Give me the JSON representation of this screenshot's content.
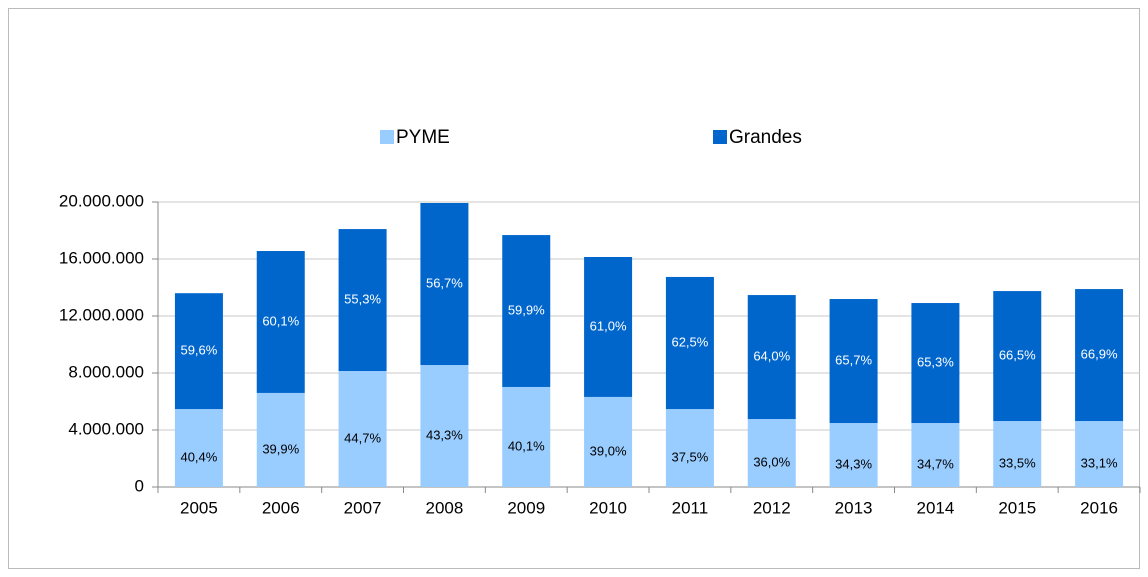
{
  "chart_data": {
    "type": "stacked_bar",
    "categories": [
      "2005",
      "2006",
      "2007",
      "2008",
      "2009",
      "2010",
      "2011",
      "2012",
      "2013",
      "2014",
      "2015",
      "2016"
    ],
    "series": [
      {
        "name": "PYME",
        "color": "#99ccff",
        "values": [
          5470000,
          6600000,
          8140000,
          8560000,
          7020000,
          6320000,
          5470000,
          4770000,
          4490000,
          4490000,
          4630000,
          4630000
        ],
        "share_labels": [
          "40,4%",
          "39,9%",
          "44,7%",
          "43,3%",
          "40,1%",
          "39,0%",
          "37,5%",
          "36,0%",
          "34,3%",
          "34,7%",
          "33,5%",
          "33,1%"
        ]
      },
      {
        "name": "Grandes",
        "color": "#0066cc",
        "values": [
          8130000,
          9960000,
          9960000,
          11370000,
          10660000,
          9820000,
          9270000,
          8700000,
          8700000,
          8420000,
          9120000,
          9260000
        ],
        "share_labels": [
          "59,6%",
          "60,1%",
          "55,3%",
          "56,7%",
          "59,9%",
          "61,0%",
          "62,5%",
          "64,0%",
          "65,7%",
          "65,3%",
          "66,5%",
          "66,9%"
        ]
      }
    ],
    "ylim": [
      0,
      20000000
    ],
    "yticks": [
      0,
      {
        "value": 4000000,
        "label": "4.000.000"
      },
      {
        "value": 8000000,
        "label": "8.000.000"
      },
      {
        "value": 12000000,
        "label": "12.000.000"
      },
      {
        "value": 16000000,
        "label": "16.000.000"
      },
      {
        "value": 20000000,
        "label": "20.000.000"
      }
    ],
    "grid": true,
    "legend": "top"
  }
}
